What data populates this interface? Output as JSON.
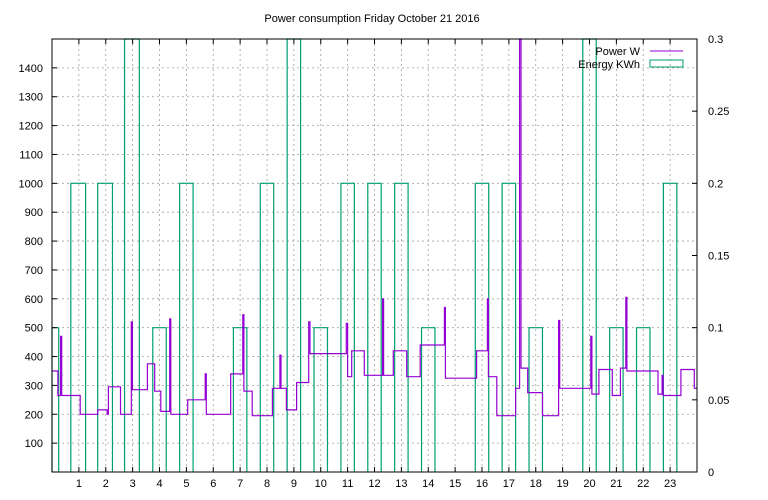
{
  "chart_data": {
    "type": "line",
    "title": "Power consumption Friday October 21 2016",
    "xlabel": "",
    "ylabel": "",
    "y2label": "",
    "xlim": [
      0,
      24
    ],
    "ylim": [
      0,
      1500
    ],
    "y2lim": [
      0,
      0.3
    ],
    "grid": true,
    "legend_position": "top-right",
    "x_ticks": [
      1,
      2,
      3,
      4,
      5,
      6,
      7,
      8,
      9,
      10,
      11,
      12,
      13,
      14,
      15,
      16,
      17,
      18,
      19,
      20,
      21,
      22,
      23
    ],
    "y_ticks": [
      100,
      200,
      300,
      400,
      500,
      600,
      700,
      800,
      900,
      1000,
      1100,
      1200,
      1300,
      1400
    ],
    "y2_ticks": [
      0,
      0.05,
      0.1,
      0.15,
      0.2,
      0.25,
      0.3
    ],
    "y2_tick_labels": [
      "0",
      "0.05",
      "0.1",
      "0.15",
      "0.2",
      "0.25",
      "0.3"
    ],
    "colors": {
      "power": "#9400d3",
      "energy": "#009e73"
    },
    "series": [
      {
        "name": "Power W",
        "type": "line",
        "axis": "y",
        "points": [
          [
            0.0,
            350
          ],
          [
            0.22,
            350
          ],
          [
            0.22,
            265
          ],
          [
            0.32,
            265
          ],
          [
            0.32,
            470
          ],
          [
            0.36,
            470
          ],
          [
            0.36,
            265
          ],
          [
            1.05,
            265
          ],
          [
            1.05,
            200
          ],
          [
            1.7,
            200
          ],
          [
            1.7,
            215
          ],
          [
            2.05,
            215
          ],
          [
            2.05,
            200
          ],
          [
            2.1,
            200
          ],
          [
            2.1,
            295
          ],
          [
            2.55,
            295
          ],
          [
            2.55,
            200
          ],
          [
            2.95,
            200
          ],
          [
            2.95,
            520
          ],
          [
            2.99,
            520
          ],
          [
            2.99,
            285
          ],
          [
            3.55,
            285
          ],
          [
            3.55,
            375
          ],
          [
            3.82,
            375
          ],
          [
            3.82,
            280
          ],
          [
            4.05,
            280
          ],
          [
            4.05,
            210
          ],
          [
            4.38,
            210
          ],
          [
            4.38,
            530
          ],
          [
            4.42,
            530
          ],
          [
            4.42,
            200
          ],
          [
            5.05,
            200
          ],
          [
            5.05,
            250
          ],
          [
            5.7,
            250
          ],
          [
            5.7,
            340
          ],
          [
            5.74,
            340
          ],
          [
            5.74,
            200
          ],
          [
            6.65,
            200
          ],
          [
            6.65,
            340
          ],
          [
            7.1,
            340
          ],
          [
            7.1,
            545
          ],
          [
            7.14,
            545
          ],
          [
            7.14,
            280
          ],
          [
            7.45,
            280
          ],
          [
            7.45,
            195
          ],
          [
            8.2,
            195
          ],
          [
            8.2,
            290
          ],
          [
            8.48,
            290
          ],
          [
            8.48,
            405
          ],
          [
            8.52,
            405
          ],
          [
            8.52,
            290
          ],
          [
            8.72,
            290
          ],
          [
            8.72,
            215
          ],
          [
            9.1,
            215
          ],
          [
            9.1,
            310
          ],
          [
            9.55,
            310
          ],
          [
            9.55,
            520
          ],
          [
            9.6,
            520
          ],
          [
            9.6,
            410
          ],
          [
            10.95,
            410
          ],
          [
            10.95,
            515
          ],
          [
            11.0,
            515
          ],
          [
            11.0,
            330
          ],
          [
            11.15,
            330
          ],
          [
            11.15,
            420
          ],
          [
            11.62,
            420
          ],
          [
            11.62,
            335
          ],
          [
            12.3,
            335
          ],
          [
            12.3,
            600
          ],
          [
            12.34,
            600
          ],
          [
            12.34,
            335
          ],
          [
            12.7,
            335
          ],
          [
            12.7,
            420
          ],
          [
            13.2,
            420
          ],
          [
            13.2,
            330
          ],
          [
            13.7,
            330
          ],
          [
            13.7,
            440
          ],
          [
            14.6,
            440
          ],
          [
            14.6,
            570
          ],
          [
            14.64,
            570
          ],
          [
            14.64,
            325
          ],
          [
            15.8,
            325
          ],
          [
            15.8,
            420
          ],
          [
            16.2,
            420
          ],
          [
            16.2,
            600
          ],
          [
            16.24,
            600
          ],
          [
            16.24,
            330
          ],
          [
            16.55,
            330
          ],
          [
            16.55,
            195
          ],
          [
            17.25,
            195
          ],
          [
            17.25,
            290
          ],
          [
            17.4,
            290
          ],
          [
            17.4,
            1500
          ],
          [
            17.45,
            1500
          ],
          [
            17.45,
            360
          ],
          [
            17.7,
            360
          ],
          [
            17.7,
            275
          ],
          [
            18.25,
            275
          ],
          [
            18.25,
            195
          ],
          [
            18.85,
            195
          ],
          [
            18.85,
            525
          ],
          [
            18.89,
            525
          ],
          [
            18.89,
            290
          ],
          [
            20.05,
            290
          ],
          [
            20.05,
            470
          ],
          [
            20.09,
            470
          ],
          [
            20.09,
            270
          ],
          [
            20.35,
            270
          ],
          [
            20.35,
            355
          ],
          [
            20.85,
            355
          ],
          [
            20.85,
            265
          ],
          [
            21.15,
            265
          ],
          [
            21.15,
            360
          ],
          [
            21.35,
            360
          ],
          [
            21.35,
            605
          ],
          [
            21.39,
            605
          ],
          [
            21.39,
            350
          ],
          [
            22.55,
            350
          ],
          [
            22.55,
            270
          ],
          [
            22.7,
            270
          ],
          [
            22.7,
            335
          ],
          [
            22.74,
            335
          ],
          [
            22.74,
            265
          ],
          [
            23.4,
            265
          ],
          [
            23.4,
            355
          ],
          [
            23.9,
            355
          ],
          [
            23.9,
            290
          ],
          [
            24.0,
            290
          ]
        ]
      },
      {
        "name": "Energy KWh",
        "type": "step-bars",
        "axis": "y2",
        "bars": [
          [
            0.0,
            0.25,
            0.1
          ],
          [
            0.7,
            1.25,
            0.2
          ],
          [
            1.7,
            2.25,
            0.2
          ],
          [
            2.7,
            3.25,
            0.3
          ],
          [
            3.75,
            4.25,
            0.1
          ],
          [
            4.75,
            5.25,
            0.2
          ],
          [
            6.75,
            7.25,
            0.1
          ],
          [
            7.75,
            8.25,
            0.2
          ],
          [
            8.75,
            9.25,
            0.3
          ],
          [
            9.75,
            10.25,
            0.1
          ],
          [
            10.75,
            11.25,
            0.2
          ],
          [
            11.75,
            12.25,
            0.2
          ],
          [
            12.75,
            13.25,
            0.2
          ],
          [
            13.75,
            14.25,
            0.1
          ],
          [
            15.75,
            16.25,
            0.2
          ],
          [
            16.75,
            17.25,
            0.2
          ],
          [
            17.75,
            18.25,
            0.1
          ],
          [
            19.75,
            20.25,
            0.3
          ],
          [
            20.75,
            21.25,
            0.1
          ],
          [
            21.75,
            22.25,
            0.1
          ],
          [
            22.75,
            23.25,
            0.2
          ]
        ]
      }
    ]
  }
}
